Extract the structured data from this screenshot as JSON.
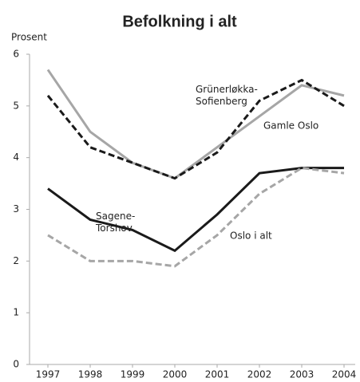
{
  "chart_data": {
    "type": "line",
    "title": "Befolkning i alt",
    "y_label": "Prosent",
    "categories": [
      "1997",
      "1998",
      "1999",
      "2000",
      "2001",
      "2002",
      "2003",
      "2004"
    ],
    "series": [
      {
        "name": "Gamle Oslo",
        "color": "#a6a6a6",
        "dash": false,
        "values": [
          5.7,
          4.5,
          3.9,
          3.6,
          4.2,
          4.8,
          5.4,
          5.2
        ]
      },
      {
        "name": "Grünerløkka-Sofienberg",
        "color": "#1a1a1a",
        "dash": true,
        "values": [
          5.2,
          4.2,
          3.9,
          3.6,
          4.1,
          5.1,
          5.5,
          5.0
        ]
      },
      {
        "name": "Sagene-Torshov",
        "color": "#1a1a1a",
        "dash": false,
        "values": [
          3.4,
          2.8,
          2.6,
          2.2,
          2.9,
          3.7,
          3.8,
          3.8
        ]
      },
      {
        "name": "Oslo i alt",
        "color": "#a6a6a6",
        "dash": true,
        "values": [
          2.5,
          2.0,
          2.0,
          1.9,
          2.5,
          3.3,
          3.8,
          3.7
        ]
      }
    ],
    "ylim": [
      0,
      6
    ],
    "yticks": [
      0,
      1,
      2,
      3,
      4,
      5,
      6
    ],
    "grid": false
  }
}
